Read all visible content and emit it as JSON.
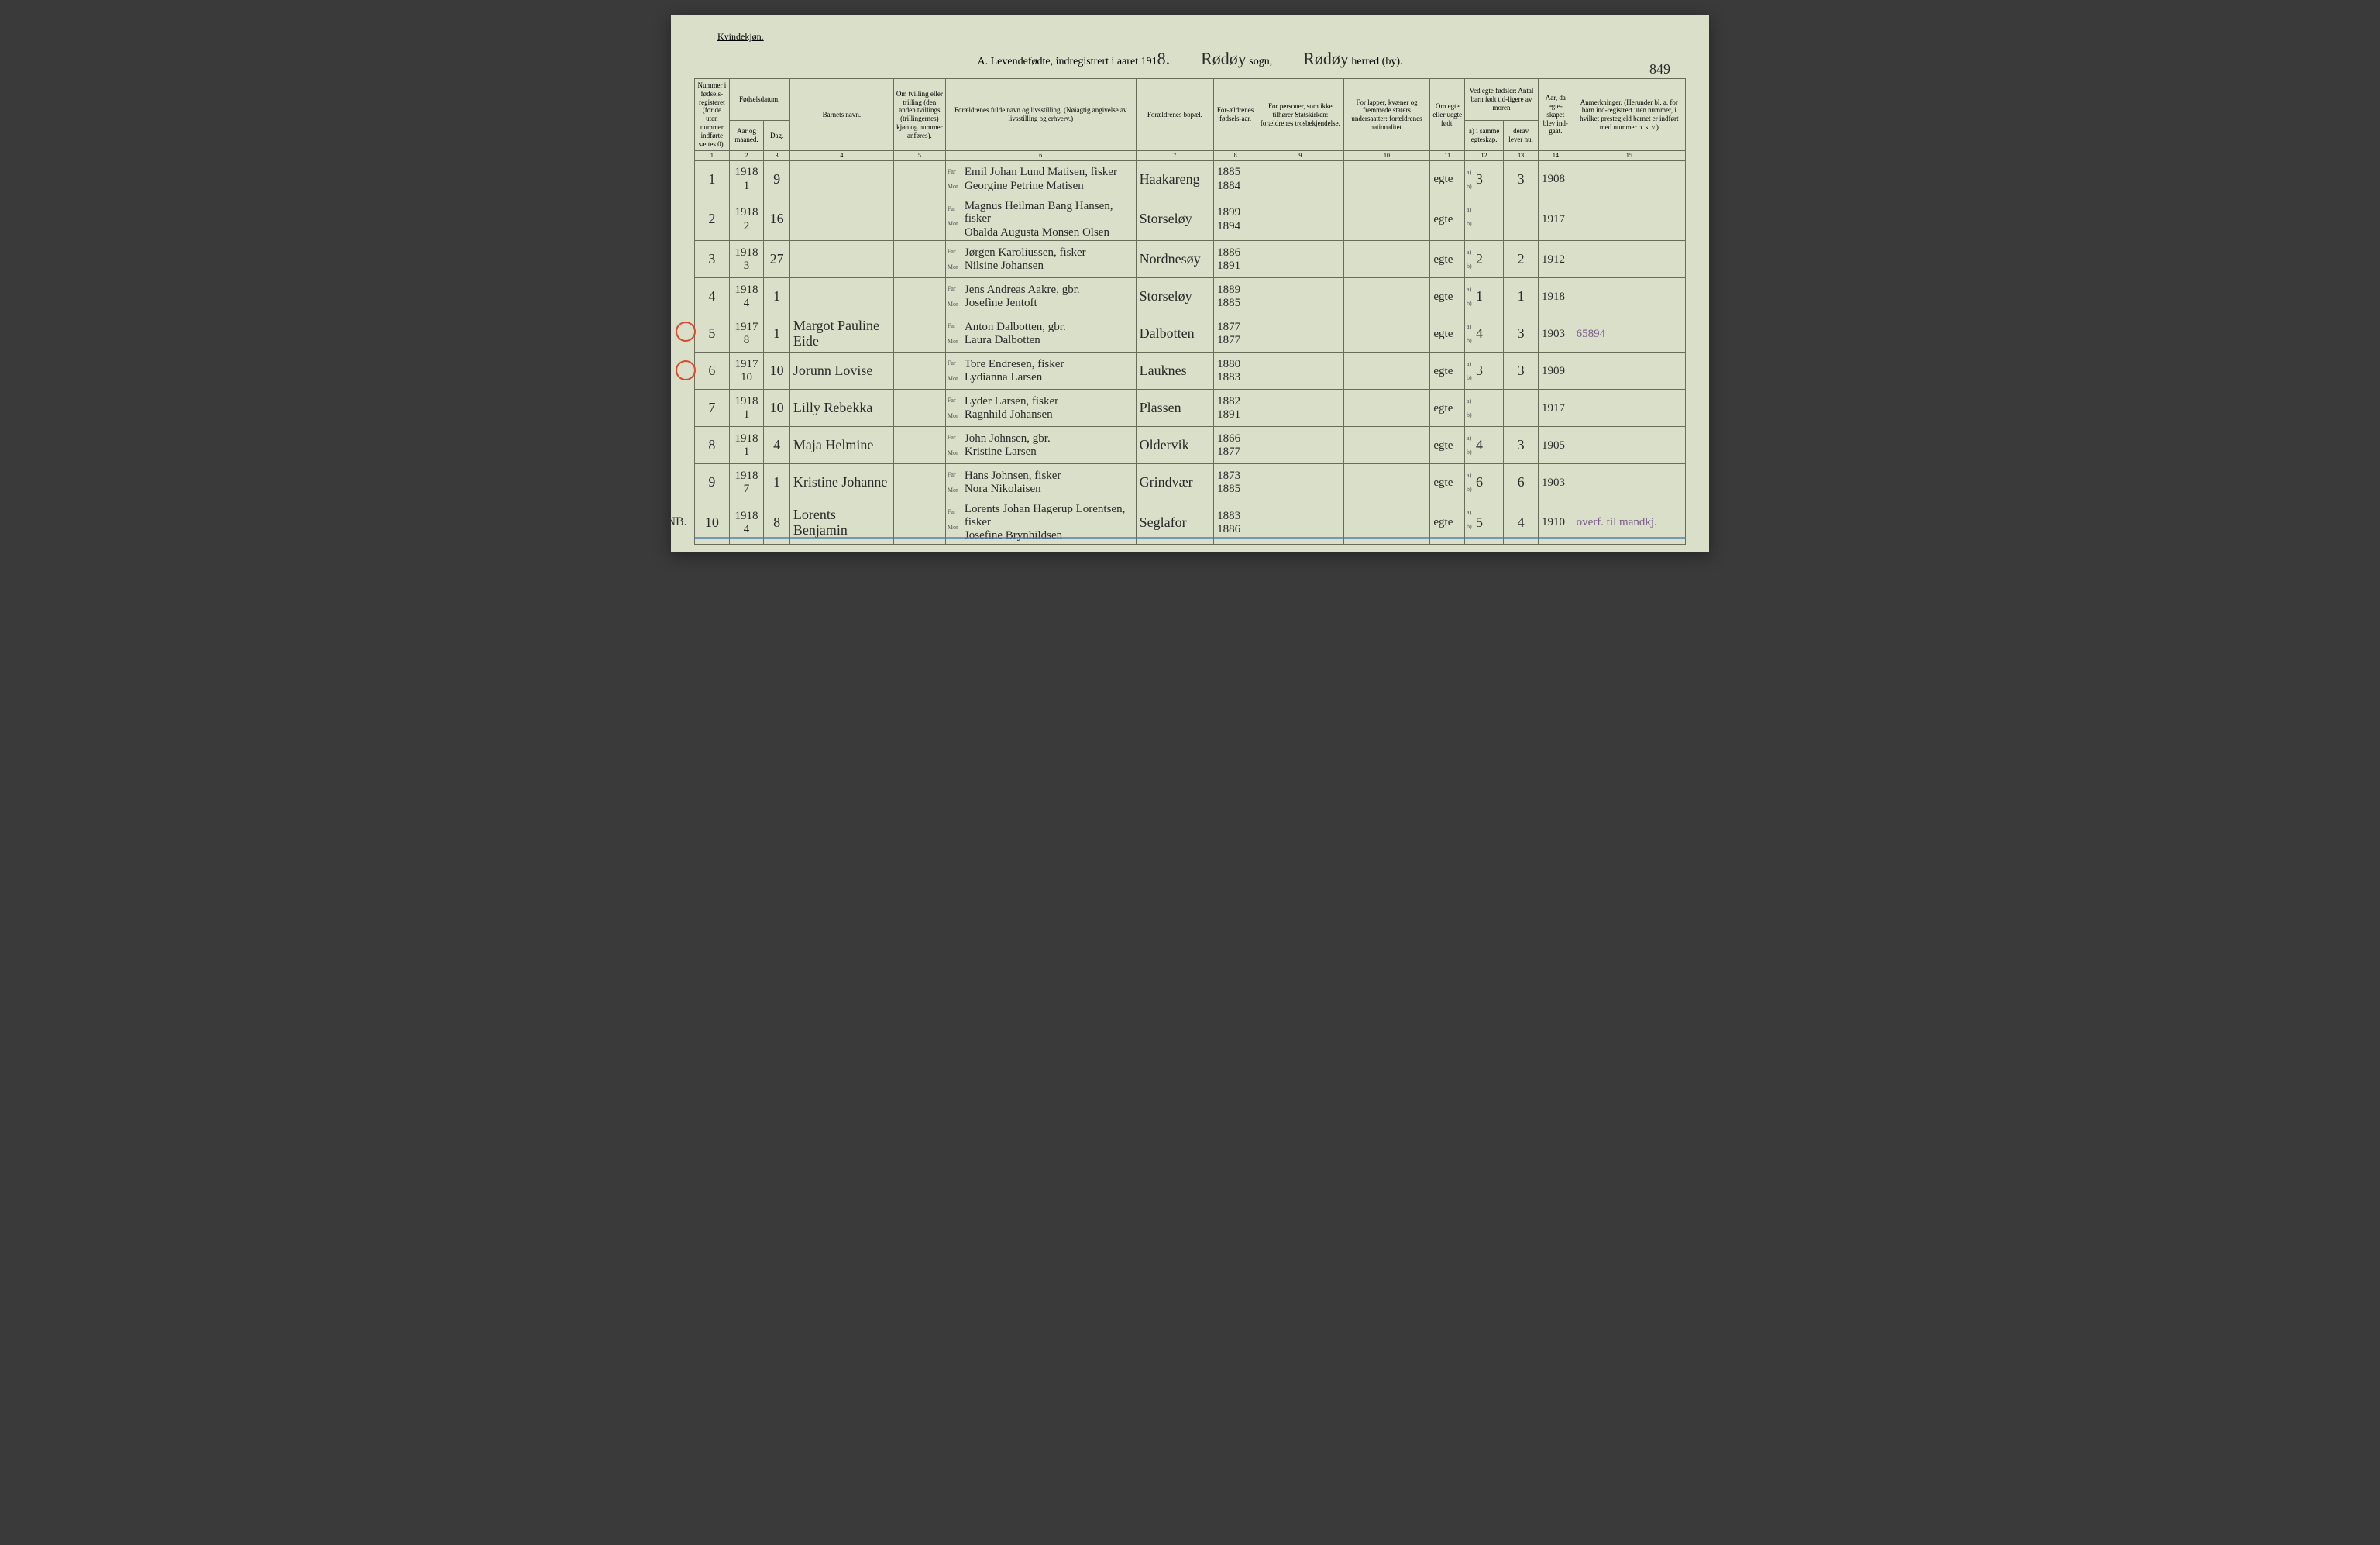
{
  "header": {
    "gender": "Kvindekjøn.",
    "title_prefix": "A.  Levendefødte, indregistrert i aaret 191",
    "year_suffix": "8.",
    "sogn_hand": "Rødøy",
    "sogn_label": "sogn,",
    "herred_hand": "Rødøy",
    "herred_label": "herred (by).",
    "page_number": "849"
  },
  "columns": {
    "c1": "Nummer i fødsels-registeret (for de uten nummer indførte sættes 0).",
    "c2_top": "Fødselsdatum.",
    "c2a": "Aar og maaned.",
    "c2b": "Dag.",
    "c4": "Barnets navn.",
    "c5": "Om tvilling eller trilling (den anden tvillings (trillingernes) kjøn og nummer anføres).",
    "c6": "Forældrenes fulde navn og livsstilling. (Nøiagtig angivelse av livsstilling og erhverv.)",
    "c7": "Forældrenes bopæl.",
    "c8": "For-ældrenes fødsels-aar.",
    "c9": "For personer, som ikke tilhører Statskirken: forældrenes trosbekjendelse.",
    "c10": "For lapper, kvæner og fremmede staters undersaatter: forældrenes nationalitet.",
    "c11": "Om egte eller uegte født.",
    "c12_top": "Ved egte fødsler: Antal barn født tid-ligere av moren",
    "c12a": "a) i samme egteskap.",
    "c12b": "b) i tidligere egteskap.",
    "c13": "derav lever nu.",
    "c14": "Aar, da egte-skapet blev ind-gaat.",
    "c15": "Anmerkninger. (Herunder bl. a. for barn ind-registrert uten nummer, i hvilket prestegjeld barnet er indført med nummer o. s. v.)"
  },
  "col_nums": [
    "1",
    "2",
    "3",
    "4",
    "5",
    "6",
    "7",
    "8",
    "9",
    "10",
    "11",
    "12",
    "13",
    "14",
    "15"
  ],
  "far_mor": {
    "far": "Far",
    "mor": "Mor"
  },
  "ab": {
    "a": "a)",
    "b": "b)"
  },
  "rows": [
    {
      "num": "1",
      "year": "1918",
      "month": "1",
      "day": "9",
      "name": "",
      "far": "Emil Johan Lund Matisen, fisker",
      "mor": "Georgine Petrine Matisen",
      "bopel": "Haakareng",
      "faar": "1885",
      "maar": "1884",
      "egte": "egte",
      "a": "3",
      "der": "3",
      "egteskapaar": "1908",
      "anm": ""
    },
    {
      "num": "2",
      "year": "1918",
      "month": "2",
      "day": "16",
      "name": "",
      "far": "Magnus Heilman Bang Hansen, fisker",
      "mor": "Obalda Augusta Monsen Olsen",
      "bopel": "Storseløy",
      "faar": "1899",
      "maar": "1894",
      "egte": "egte",
      "a": "",
      "der": "",
      "egteskapaar": "1917",
      "anm": ""
    },
    {
      "num": "3",
      "year": "1918",
      "month": "3",
      "day": "27",
      "name": "",
      "far": "Jørgen Karoliussen, fisker",
      "mor": "Nilsine Johansen",
      "bopel": "Nordnesøy",
      "faar": "1886",
      "maar": "1891",
      "egte": "egte",
      "a": "2",
      "der": "2",
      "egteskapaar": "1912",
      "anm": ""
    },
    {
      "num": "4",
      "year": "1918",
      "month": "4",
      "day": "1",
      "name": "",
      "far": "Jens Andreas Aakre, gbr.",
      "mor": "Josefine Jentoft",
      "bopel": "Storseløy",
      "faar": "1889",
      "maar": "1885",
      "egte": "egte",
      "a": "1",
      "der": "1",
      "egteskapaar": "1918",
      "anm": ""
    },
    {
      "num": "5",
      "year": "1917",
      "month": "8",
      "day": "1",
      "name": "Margot Pauline Eide",
      "far": "Anton Dalbotten, gbr.",
      "mor": "Laura Dalbotten",
      "bopel": "Dalbotten",
      "faar": "1877",
      "maar": "1877",
      "egte": "egte",
      "a": "4",
      "der": "3",
      "egteskapaar": "1903",
      "anm": "65894",
      "redcircle": true
    },
    {
      "num": "6",
      "year": "1917",
      "month": "10",
      "day": "10",
      "name": "Jorunn Lovise",
      "far": "Tore Endresen, fisker",
      "mor": "Lydianna Larsen",
      "bopel": "Lauknes",
      "faar": "1880",
      "maar": "1883",
      "egte": "egte",
      "a": "3",
      "der": "3",
      "egteskapaar": "1909",
      "anm": "",
      "redcircle": true
    },
    {
      "num": "7",
      "year": "1918",
      "month": "1",
      "day": "10",
      "name": "Lilly Rebekka",
      "far": "Lyder Larsen, fisker",
      "mor": "Ragnhild Johansen",
      "bopel": "Plassen",
      "faar": "1882",
      "maar": "1891",
      "egte": "egte",
      "a": "",
      "der": "",
      "egteskapaar": "1917",
      "anm": ""
    },
    {
      "num": "8",
      "year": "1918",
      "month": "1",
      "day": "4",
      "name": "Maja Helmine",
      "far": "John Johnsen, gbr.",
      "mor": "Kristine Larsen",
      "bopel": "Oldervik",
      "faar": "1866",
      "maar": "1877",
      "egte": "egte",
      "a": "4",
      "der": "3",
      "egteskapaar": "1905",
      "anm": ""
    },
    {
      "num": "9",
      "year": "1918",
      "month": "7",
      "day": "1",
      "name": "Kristine Johanne",
      "far": "Hans Johnsen, fisker",
      "mor": "Nora Nikolaisen",
      "bopel": "Grindvær",
      "faar": "1873",
      "maar": "1885",
      "egte": "egte",
      "a": "6",
      "der": "6",
      "egteskapaar": "1903",
      "anm": ""
    },
    {
      "num": "10",
      "year": "1918",
      "month": "4",
      "day": "8",
      "name": "Lorents Benjamin",
      "far": "Lorents Johan Hagerup Lorentsen, fisker",
      "mor": "Josefine Brynhildsen",
      "bopel": "Seglafor",
      "faar": "1883",
      "maar": "1886",
      "egte": "egte",
      "a": "5",
      "der": "4",
      "egteskapaar": "1910",
      "anm": "overf. til mandkj.",
      "marginnote": "NB."
    }
  ]
}
